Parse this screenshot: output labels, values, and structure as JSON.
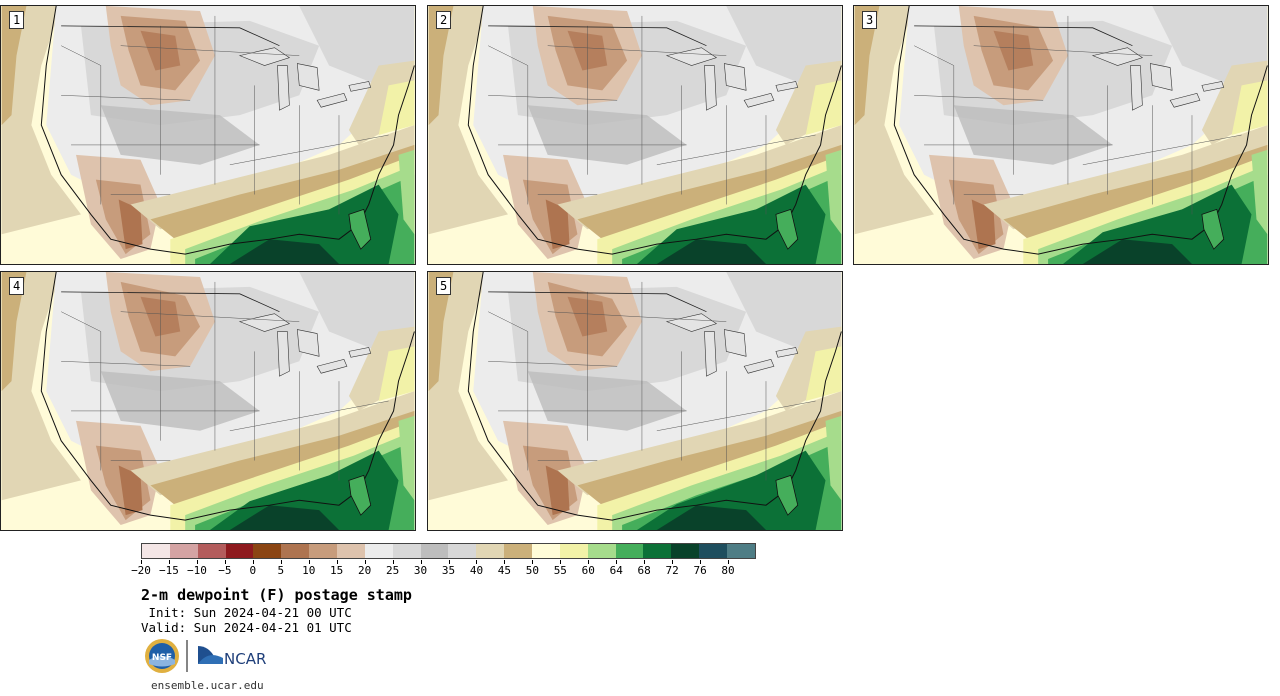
{
  "panels": [
    {
      "label": "1"
    },
    {
      "label": "2"
    },
    {
      "label": "3"
    },
    {
      "label": "4"
    },
    {
      "label": "5"
    }
  ],
  "colorbar": {
    "colors": [
      "#f4e6e6",
      "#d4a3a3",
      "#b35c5c",
      "#8e1a1e",
      "#8b4513",
      "#ae7450",
      "#c79c7c",
      "#dec3ad",
      "#ececec",
      "#d8d8d8",
      "#bdbdbd",
      "#d7d7d7",
      "#e1d6b4",
      "#cbb07a",
      "#fffcd8",
      "#f2f2a8",
      "#a6dc8c",
      "#45ae5b",
      "#0c7137",
      "#09422a",
      "#1e4e5e",
      "#4e7d85"
    ],
    "tick_labels": [
      "−20",
      "−15",
      "−10",
      "−5",
      "0",
      "5",
      "10",
      "15",
      "20",
      "25",
      "30",
      "35",
      "40",
      "45",
      "50",
      "55",
      "60",
      "64",
      "68",
      "72",
      "76",
      "80"
    ]
  },
  "title": "2-m dewpoint (F) postage stamp",
  "init": " Init: Sun 2024-04-21 00 UTC",
  "valid": "Valid: Sun 2024-04-21 01 UTC",
  "logos": {
    "left": "NSF",
    "right": "NCAR"
  },
  "site": "ensemble.ucar.edu"
}
